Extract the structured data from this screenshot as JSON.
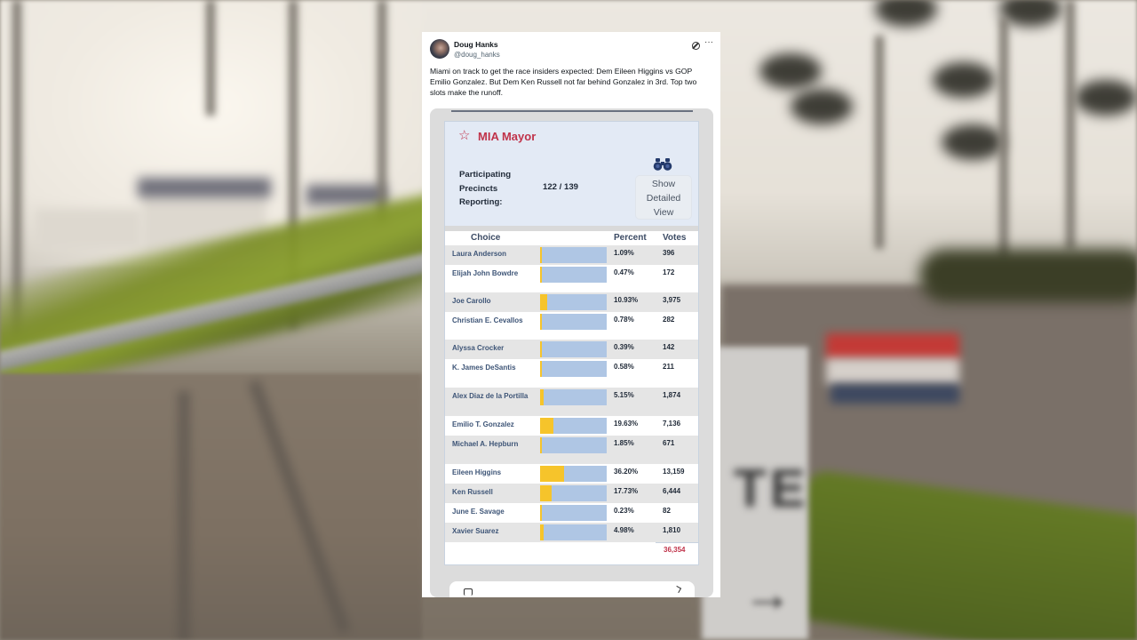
{
  "tweet": {
    "author_name": "Doug Hanks",
    "author_handle": "@doug_hanks",
    "text": "Miami on track to get the race insiders expected: Dem Eileen Higgins vs GOP Emilio Gonzalez. But Dem Ken Russell not far behind Gonzalez in 3rd. Top two slots make the runoff.",
    "icons": {
      "grok": "grok-icon",
      "more": "more-icon"
    },
    "more_glyph": "···"
  },
  "contest": {
    "star_glyph": "☆",
    "title": "MIA Mayor",
    "precincts_label": "Participating Precincts Reporting:",
    "precincts_value": "122 / 139",
    "detail_button_label": "Show Detailed View",
    "detail_icon": "binoculars-icon",
    "columns": {
      "choice": "Choice",
      "percent": "Percent",
      "votes": "Votes"
    },
    "candidates": [
      {
        "name": "Laura Anderson",
        "percent": "1.09%",
        "votes": "396",
        "pct_value": 1.09
      },
      {
        "name": "Elijah John Bowdre",
        "percent": "0.47%",
        "votes": "172",
        "pct_value": 0.47
      },
      {
        "name": "Joe Carollo",
        "percent": "10.93%",
        "votes": "3,975",
        "pct_value": 10.93
      },
      {
        "name": "Christian E. Cevallos",
        "percent": "0.78%",
        "votes": "282",
        "pct_value": 0.78
      },
      {
        "name": "Alyssa Crocker",
        "percent": "0.39%",
        "votes": "142",
        "pct_value": 0.39
      },
      {
        "name": "K. James DeSantis",
        "percent": "0.58%",
        "votes": "211",
        "pct_value": 0.58
      },
      {
        "name": "Alex Diaz de la Portilla",
        "percent": "5.15%",
        "votes": "1,874",
        "pct_value": 5.15
      },
      {
        "name": "Emilio T. Gonzalez",
        "percent": "19.63%",
        "votes": "7,136",
        "pct_value": 19.63
      },
      {
        "name": "Michael A. Hepburn",
        "percent": "1.85%",
        "votes": "671",
        "pct_value": 1.85
      },
      {
        "name": "Eileen Higgins",
        "percent": "36.20%",
        "votes": "13,159",
        "pct_value": 36.2
      },
      {
        "name": "Ken Russell",
        "percent": "17.73%",
        "votes": "6,444",
        "pct_value": 17.73
      },
      {
        "name": "June E. Savage",
        "percent": "0.23%",
        "votes": "82",
        "pct_value": 0.23
      },
      {
        "name": "Xavier Suarez",
        "percent": "4.98%",
        "votes": "1,810",
        "pct_value": 4.98
      }
    ],
    "total_votes": "36,354",
    "colors": {
      "title": "#c0334a",
      "bar_bg": "#afc6e4",
      "bar_fill": "#f6c42b",
      "header_bg": "#e3eaf5",
      "name_text": "#3e5577"
    }
  }
}
